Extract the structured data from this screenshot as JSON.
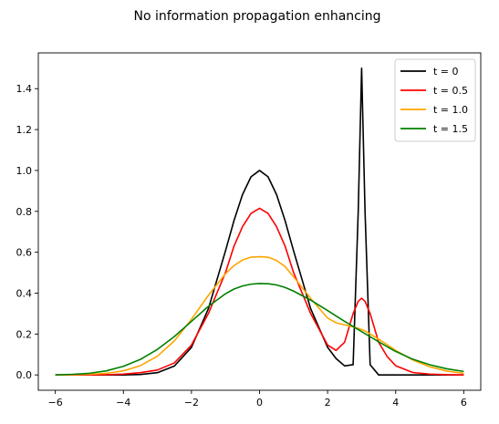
{
  "chart_data": {
    "type": "line",
    "title": "No information propagation enhancing",
    "xlabel": "",
    "ylabel": "",
    "xlim": [
      -6.5,
      6.5
    ],
    "ylim": [
      -0.075,
      1.575
    ],
    "xticks": [
      -6,
      -4,
      -2,
      0,
      2,
      4,
      6
    ],
    "xtick_labels": [
      "−6",
      "−4",
      "−2",
      "0",
      "2",
      "4",
      "6"
    ],
    "yticks": [
      0.0,
      0.2,
      0.4,
      0.6,
      0.8,
      1.0,
      1.2,
      1.4
    ],
    "ytick_labels": [
      "0.0",
      "0.2",
      "0.4",
      "0.6",
      "0.8",
      "1.0",
      "1.2",
      "1.4"
    ],
    "grid": false,
    "legend_position": "top-right",
    "x": [
      -6.0,
      -5.5,
      -5.0,
      -4.5,
      -4.0,
      -3.5,
      -3.0,
      -2.5,
      -2.0,
      -1.5,
      -1.0,
      -0.75,
      -0.5,
      -0.25,
      0.0,
      0.25,
      0.5,
      0.75,
      1.0,
      1.5,
      2.0,
      2.25,
      2.5,
      2.75,
      2.9,
      3.0,
      3.1,
      3.25,
      3.5,
      3.75,
      4.0,
      4.5,
      5.0,
      5.5,
      6.0
    ],
    "series": [
      {
        "name": "t = 0",
        "color": "#000000",
        "values": [
          0.0,
          0.0,
          0.0,
          0.0,
          0.0,
          0.002,
          0.011,
          0.044,
          0.135,
          0.325,
          0.607,
          0.755,
          0.882,
          0.969,
          1.0,
          0.969,
          0.882,
          0.755,
          0.607,
          0.325,
          0.135,
          0.08,
          0.044,
          0.05,
          0.8,
          1.5,
          0.8,
          0.05,
          0.0,
          0.0,
          0.0,
          0.0,
          0.0,
          0.0,
          0.0
        ]
      },
      {
        "name": "t = 0.5",
        "color": "#ff0000",
        "values": [
          0.0,
          0.0,
          0.0,
          0.001,
          0.004,
          0.011,
          0.024,
          0.059,
          0.146,
          0.301,
          0.501,
          0.63,
          0.725,
          0.79,
          0.815,
          0.79,
          0.725,
          0.63,
          0.501,
          0.301,
          0.146,
          0.12,
          0.16,
          0.3,
          0.36,
          0.375,
          0.36,
          0.3,
          0.16,
          0.09,
          0.045,
          0.012,
          0.004,
          0.001,
          0.0
        ]
      },
      {
        "name": "t = 1.0",
        "color": "#ffa500",
        "values": [
          0.0,
          0.001,
          0.003,
          0.008,
          0.02,
          0.045,
          0.092,
          0.167,
          0.272,
          0.39,
          0.495,
          0.535,
          0.562,
          0.576,
          0.578,
          0.576,
          0.56,
          0.53,
          0.48,
          0.375,
          0.278,
          0.255,
          0.245,
          0.235,
          0.228,
          0.222,
          0.215,
          0.2,
          0.175,
          0.148,
          0.12,
          0.073,
          0.04,
          0.019,
          0.008
        ]
      },
      {
        "name": "t = 1.5",
        "color": "#008000",
        "values": [
          0.0,
          0.003,
          0.008,
          0.02,
          0.042,
          0.076,
          0.125,
          0.188,
          0.262,
          0.336,
          0.397,
          0.42,
          0.435,
          0.444,
          0.447,
          0.446,
          0.44,
          0.428,
          0.41,
          0.366,
          0.315,
          0.288,
          0.262,
          0.237,
          0.222,
          0.212,
          0.202,
          0.187,
          0.162,
          0.138,
          0.115,
          0.077,
          0.05,
          0.03,
          0.017
        ]
      }
    ]
  }
}
